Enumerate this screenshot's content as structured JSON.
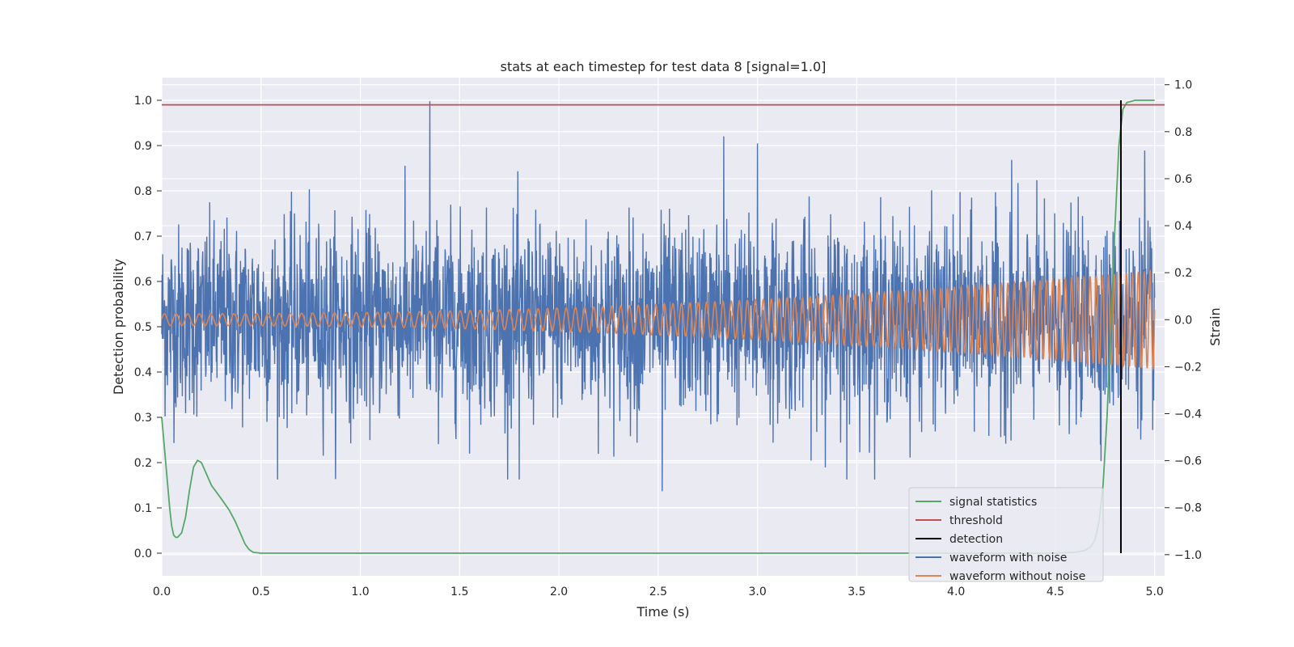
{
  "chart_data": {
    "type": "line",
    "title": "stats at each timestep for test data 8 [signal=1.0]",
    "xlabel": "Time (s)",
    "ylabel_left": "Detection probability",
    "ylabel_right": "Strain",
    "xlim": [
      0.0,
      5.05
    ],
    "ylim_left": [
      -0.05,
      1.05
    ],
    "ylim_right": [
      -1.09,
      1.03
    ],
    "grid": true,
    "legend_position": "lower-right",
    "x_ticks": [
      "0.0",
      "0.5",
      "1.0",
      "1.5",
      "2.0",
      "2.5",
      "3.0",
      "3.5",
      "4.0",
      "4.5",
      "5.0"
    ],
    "y_ticks_left": [
      "0.0",
      "0.1",
      "0.2",
      "0.3",
      "0.4",
      "0.5",
      "0.6",
      "0.7",
      "0.8",
      "0.9",
      "1.0"
    ],
    "y_ticks_right": [
      "−1.0",
      "−0.8",
      "−0.6",
      "−0.4",
      "−0.2",
      "0.0",
      "0.2",
      "0.4",
      "0.6",
      "0.8",
      "1.0"
    ],
    "threshold": 0.99,
    "detection_time": 4.83,
    "detection_range": [
      0.0,
      1.0
    ],
    "signal_statistics": {
      "x": [
        0.0,
        0.02,
        0.04,
        0.05,
        0.06,
        0.07,
        0.08,
        0.1,
        0.12,
        0.14,
        0.16,
        0.18,
        0.2,
        0.22,
        0.25,
        0.3,
        0.34,
        0.37,
        0.4,
        0.42,
        0.44,
        0.46,
        0.5,
        1.0,
        2.0,
        3.0,
        4.0,
        4.5,
        4.6,
        4.65,
        4.68,
        4.7,
        4.72,
        4.74,
        4.76,
        4.78,
        4.8,
        4.82,
        4.84,
        4.86,
        4.9,
        5.0
      ],
      "y": [
        0.3,
        0.2,
        0.1,
        0.06,
        0.04,
        0.035,
        0.035,
        0.045,
        0.08,
        0.14,
        0.19,
        0.205,
        0.2,
        0.18,
        0.15,
        0.12,
        0.095,
        0.07,
        0.04,
        0.02,
        0.008,
        0.002,
        0.0,
        0.0,
        0.0,
        0.0,
        0.0,
        0.0,
        0.002,
        0.006,
        0.015,
        0.03,
        0.07,
        0.15,
        0.3,
        0.5,
        0.72,
        0.9,
        0.98,
        0.995,
        1.0,
        1.0
      ],
      "color": "#55a868"
    },
    "waveform_with_noise": {
      "axis": "right",
      "approx_std": 0.2,
      "range": [
        -0.73,
        0.93
      ],
      "peaks": [
        [
          1.35,
          0.93
        ],
        [
          2.52,
          -0.73
        ],
        [
          2.83,
          0.78
        ],
        [
          3.0,
          0.75
        ],
        [
          4.28,
          0.68
        ],
        [
          4.95,
          0.72
        ],
        [
          1.8,
          -0.68
        ],
        [
          3.45,
          -0.68
        ]
      ],
      "color": "#4c72b0"
    },
    "waveform_without_noise": {
      "axis": "right",
      "amplitude_start": 0.025,
      "amplitude_end": 0.21,
      "frequency_start_hz": 17,
      "frequency_end_hz": 34,
      "color": "#dd8452"
    },
    "series": [
      {
        "name": "signal statistics",
        "color": "#55a868"
      },
      {
        "name": "threshold",
        "color": "#c44e52"
      },
      {
        "name": "detection",
        "color": "#000000"
      },
      {
        "name": "waveform with noise",
        "color": "#4c72b0"
      },
      {
        "name": "waveform without noise",
        "color": "#dd8452"
      }
    ]
  }
}
